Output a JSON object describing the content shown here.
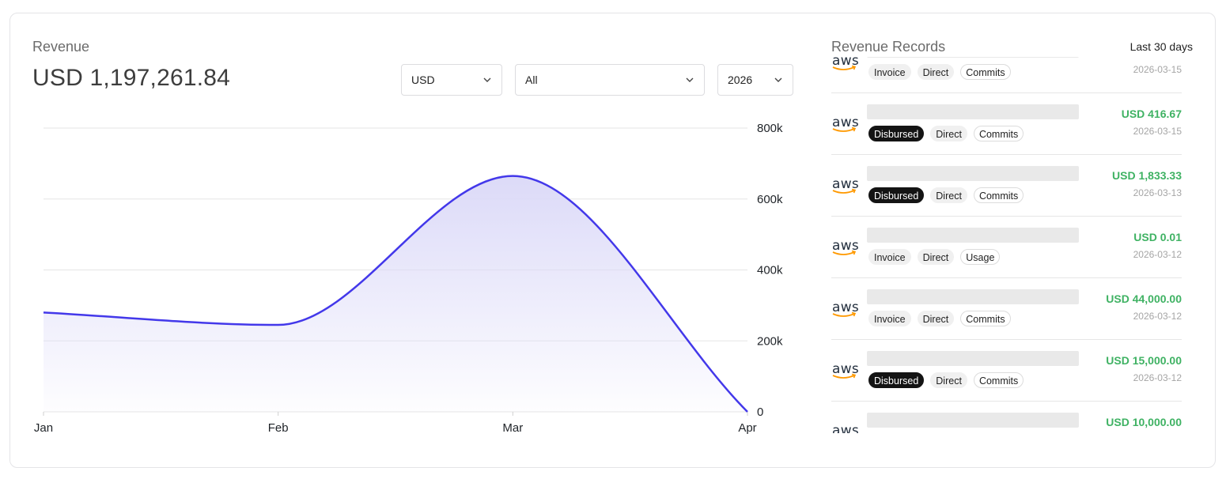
{
  "revenue": {
    "title": "Revenue",
    "total": "USD 1,197,261.84",
    "filters": {
      "currency": "USD",
      "segment": "All",
      "year": "2026"
    }
  },
  "chart_data": {
    "type": "area",
    "categories": [
      "Jan",
      "Feb",
      "Mar",
      "Apr"
    ],
    "values": [
      280000,
      245000,
      665000,
      0
    ],
    "y_ticks": [
      "800k",
      "600k",
      "400k",
      "200k",
      "0"
    ],
    "ylim": [
      0,
      800000
    ],
    "title": "",
    "xlabel": "",
    "ylabel": "",
    "grid": true,
    "y_axis_side": "right",
    "line_color": "#4338ea",
    "fill_color": "#dcdaf8"
  },
  "records": {
    "title": "Revenue Records",
    "range": "Last 30 days",
    "items": [
      {
        "tags": [
          [
            "Invoice",
            "grey"
          ],
          [
            "Direct",
            "grey"
          ],
          [
            "Commits",
            "outline"
          ]
        ],
        "amount": "",
        "date": "2026-03-15"
      },
      {
        "tags": [
          [
            "Disbursed",
            "dark"
          ],
          [
            "Direct",
            "grey"
          ],
          [
            "Commits",
            "outline"
          ]
        ],
        "amount": "USD 416.67",
        "date": "2026-03-15"
      },
      {
        "tags": [
          [
            "Disbursed",
            "dark"
          ],
          [
            "Direct",
            "grey"
          ],
          [
            "Commits",
            "outline"
          ]
        ],
        "amount": "USD 1,833.33",
        "date": "2026-03-13"
      },
      {
        "tags": [
          [
            "Invoice",
            "grey"
          ],
          [
            "Direct",
            "grey"
          ],
          [
            "Usage",
            "outline"
          ]
        ],
        "amount": "USD 0.01",
        "date": "2026-03-12"
      },
      {
        "tags": [
          [
            "Invoice",
            "grey"
          ],
          [
            "Direct",
            "grey"
          ],
          [
            "Commits",
            "outline"
          ]
        ],
        "amount": "USD 44,000.00",
        "date": "2026-03-12"
      },
      {
        "tags": [
          [
            "Disbursed",
            "dark"
          ],
          [
            "Direct",
            "grey"
          ],
          [
            "Commits",
            "outline"
          ]
        ],
        "amount": "USD 15,000.00",
        "date": "2026-03-12"
      },
      {
        "tags": [],
        "amount": "USD 10,000.00",
        "date": ""
      }
    ],
    "logo_text": "aws",
    "logo_icon": "aws-logo-icon"
  }
}
